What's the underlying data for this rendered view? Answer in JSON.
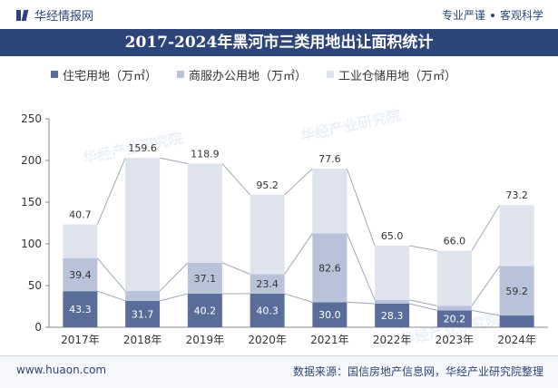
{
  "header": {
    "brand": "华经情报网",
    "slogan_left": "专业严谨",
    "slogan_right": "客观科学"
  },
  "footer": {
    "website": "www.huaon.com",
    "source": "数据来源：国信房地产信息网，华经产业研究院整理"
  },
  "watermarks": [
    "华经产业研究院",
    "华经产业研究院",
    "华经产业研究院"
  ],
  "colors": {
    "title_bar": "#2c4478",
    "residential": "#5a6d9a",
    "commercial": "#b8c2d9",
    "industrial": "#dfe3ee"
  },
  "chart_data": {
    "type": "bar",
    "stacked": true,
    "title": "2017-2024年黑河市三类用地出让面积统计",
    "categories": [
      "2017年",
      "2018年",
      "2019年",
      "2020年",
      "2021年",
      "2022年",
      "2023年",
      "2024年"
    ],
    "series": [
      {
        "name": "住宅用地（万㎡）",
        "values": [
          43.3,
          31.7,
          40.2,
          40.3,
          30.0,
          28.3,
          20.2,
          14.1
        ]
      },
      {
        "name": "商服办公用地（万㎡）",
        "values": [
          39.4,
          11.7,
          37.1,
          23.4,
          82.6,
          4.5,
          5.5,
          59.2
        ]
      },
      {
        "name": "工业仓储用地（万㎡）",
        "values": [
          40.7,
          159.6,
          118.9,
          95.2,
          77.6,
          65.0,
          66.0,
          73.2
        ]
      }
    ],
    "ylim": [
      0,
      250
    ],
    "yticks": [
      0,
      50,
      100,
      150,
      200,
      250
    ],
    "legend_position": "top-left",
    "grid": false
  }
}
